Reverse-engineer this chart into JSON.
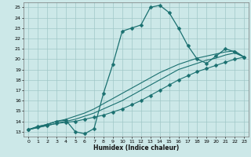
{
  "xlabel": "Humidex (Indice chaleur)",
  "xlim": [
    -0.5,
    23.5
  ],
  "ylim": [
    12.5,
    25.5
  ],
  "xticks": [
    0,
    1,
    2,
    3,
    4,
    5,
    6,
    7,
    8,
    9,
    10,
    11,
    12,
    13,
    14,
    15,
    16,
    17,
    18,
    19,
    20,
    21,
    22,
    23
  ],
  "yticks": [
    13,
    14,
    15,
    16,
    17,
    18,
    19,
    20,
    21,
    22,
    23,
    24,
    25
  ],
  "bg_color": "#cce8e8",
  "line_color": "#1a7070",
  "grid_color": "#a0c8c8",
  "line1_x": [
    0,
    1,
    2,
    3,
    4,
    5,
    6,
    7,
    8,
    9,
    10,
    11,
    12,
    13,
    14,
    15,
    16,
    17,
    18,
    19,
    20,
    21,
    22,
    23
  ],
  "line1_y": [
    13.2,
    13.5,
    13.7,
    14.0,
    14.1,
    13.0,
    12.8,
    13.3,
    16.7,
    19.5,
    22.7,
    23.0,
    23.3,
    25.0,
    25.2,
    24.5,
    23.0,
    21.3,
    20.0,
    19.6,
    20.3,
    21.0,
    20.7,
    20.2
  ],
  "line2_x": [
    0,
    1,
    2,
    3,
    4,
    5,
    6,
    7,
    8,
    9,
    10,
    11,
    12,
    13,
    14,
    15,
    16,
    17,
    18,
    19,
    20,
    21,
    22,
    23
  ],
  "line2_y": [
    13.2,
    13.4,
    13.6,
    13.8,
    13.9,
    14.0,
    14.2,
    14.4,
    14.6,
    14.9,
    15.2,
    15.6,
    16.0,
    16.5,
    17.0,
    17.5,
    18.0,
    18.4,
    18.8,
    19.1,
    19.4,
    19.7,
    20.0,
    20.2
  ],
  "line3_x": [
    0,
    1,
    2,
    3,
    4,
    5,
    6,
    7,
    8,
    9,
    10,
    11,
    12,
    13,
    14,
    15,
    16,
    17,
    18,
    19,
    20,
    21,
    22,
    23
  ],
  "line3_y": [
    13.2,
    13.4,
    13.6,
    13.8,
    14.0,
    14.2,
    14.5,
    14.8,
    15.2,
    15.6,
    16.0,
    16.5,
    17.0,
    17.5,
    18.0,
    18.5,
    19.0,
    19.3,
    19.6,
    19.9,
    20.1,
    20.4,
    20.6,
    20.2
  ],
  "line4_x": [
    0,
    1,
    2,
    3,
    4,
    5,
    6,
    7,
    8,
    9,
    10,
    11,
    12,
    13,
    14,
    15,
    16,
    17,
    18,
    19,
    20,
    21,
    22,
    23
  ],
  "line4_y": [
    13.2,
    13.5,
    13.7,
    14.0,
    14.2,
    14.5,
    14.8,
    15.2,
    15.7,
    16.2,
    16.7,
    17.2,
    17.7,
    18.2,
    18.7,
    19.1,
    19.5,
    19.8,
    20.1,
    20.3,
    20.5,
    20.7,
    20.8,
    20.2
  ]
}
